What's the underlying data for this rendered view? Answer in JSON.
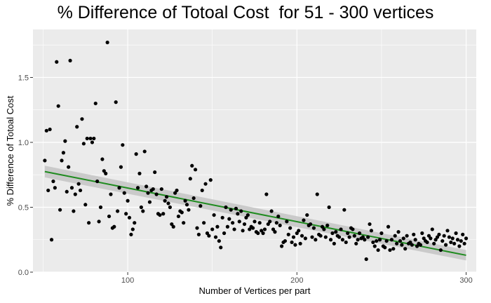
{
  "chart_data": {
    "type": "scatter",
    "title": "% Difference of Totoal Cost  for 51 - 300 vertices",
    "xlabel": "Number of Vertices per part",
    "ylabel": "% Difference of Totoal Cost",
    "xlim": [
      44,
      306
    ],
    "ylim": [
      0.0,
      1.87
    ],
    "x_ticks": [
      100,
      200,
      300
    ],
    "y_ticks": [
      0.0,
      0.5,
      1.0,
      1.5
    ],
    "x_tick_labels": [
      "100",
      "200",
      "300"
    ],
    "y_tick_labels": [
      "0.0",
      "0.5",
      "1.0",
      "1.5"
    ],
    "grid": true,
    "legend": "none",
    "colors": {
      "panel": "#ebebeb",
      "grid": "#ffffff",
      "points": "#000000",
      "trend_line": "#1f8b1f",
      "confidence_band": "#c6c6c6"
    },
    "trend": {
      "type": "linear",
      "x": [
        51,
        300
      ],
      "y": [
        0.775,
        0.13
      ],
      "band_half_width": [
        0.045,
        0.04
      ]
    },
    "points": [
      [
        51,
        0.86
      ],
      [
        52,
        1.09
      ],
      [
        53,
        0.63
      ],
      [
        54,
        1.1
      ],
      [
        55,
        0.25
      ],
      [
        56,
        0.7
      ],
      [
        57,
        0.65
      ],
      [
        58,
        1.62
      ],
      [
        59,
        1.28
      ],
      [
        60,
        0.48
      ],
      [
        61,
        0.86
      ],
      [
        62,
        0.92
      ],
      [
        63,
        1.01
      ],
      [
        64,
        0.62
      ],
      [
        65,
        0.81
      ],
      [
        66,
        1.63
      ],
      [
        67,
        0.65
      ],
      [
        68,
        0.47
      ],
      [
        69,
        0.6
      ],
      [
        70,
        1.12
      ],
      [
        71,
        0.68
      ],
      [
        72,
        0.63
      ],
      [
        73,
        1.18
      ],
      [
        74,
        0.99
      ],
      [
        75,
        0.52
      ],
      [
        76,
        1.03
      ],
      [
        77,
        0.38
      ],
      [
        78,
        1.03
      ],
      [
        79,
        1.0
      ],
      [
        80,
        1.03
      ],
      [
        81,
        1.3
      ],
      [
        82,
        0.7
      ],
      [
        83,
        0.39
      ],
      [
        84,
        0.5
      ],
      [
        85,
        0.87
      ],
      [
        86,
        0.78
      ],
      [
        87,
        0.76
      ],
      [
        88,
        1.77
      ],
      [
        89,
        0.43
      ],
      [
        90,
        0.6
      ],
      [
        91,
        0.34
      ],
      [
        92,
        0.35
      ],
      [
        93,
        1.31
      ],
      [
        94,
        0.47
      ],
      [
        95,
        0.65
      ],
      [
        96,
        0.81
      ],
      [
        97,
        0.98
      ],
      [
        98,
        0.61
      ],
      [
        99,
        0.45
      ],
      [
        100,
        0.55
      ],
      [
        101,
        0.42
      ],
      [
        102,
        0.29
      ],
      [
        103,
        0.33
      ],
      [
        104,
        0.38
      ],
      [
        105,
        0.91
      ],
      [
        106,
        0.65
      ],
      [
        107,
        0.76
      ],
      [
        108,
        0.5
      ],
      [
        109,
        0.47
      ],
      [
        110,
        0.93
      ],
      [
        111,
        0.66
      ],
      [
        112,
        0.61
      ],
      [
        113,
        0.54
      ],
      [
        114,
        0.63
      ],
      [
        115,
        0.64
      ],
      [
        116,
        0.77
      ],
      [
        117,
        0.6
      ],
      [
        118,
        0.45
      ],
      [
        119,
        0.44
      ],
      [
        120,
        0.64
      ],
      [
        121,
        0.45
      ],
      [
        122,
        0.55
      ],
      [
        123,
        0.58
      ],
      [
        124,
        0.53
      ],
      [
        125,
        0.5
      ],
      [
        126,
        0.37
      ],
      [
        127,
        0.35
      ],
      [
        128,
        0.61
      ],
      [
        129,
        0.63
      ],
      [
        130,
        0.43
      ],
      [
        131,
        0.47
      ],
      [
        132,
        0.46
      ],
      [
        133,
        0.38
      ],
      [
        134,
        0.55
      ],
      [
        135,
        0.52
      ],
      [
        136,
        0.48
      ],
      [
        137,
        0.72
      ],
      [
        138,
        0.82
      ],
      [
        139,
        0.57
      ],
      [
        140,
        0.79
      ],
      [
        141,
        0.34
      ],
      [
        142,
        0.29
      ],
      [
        143,
        0.51
      ],
      [
        144,
        0.63
      ],
      [
        145,
        0.38
      ],
      [
        146,
        0.68
      ],
      [
        147,
        0.3
      ],
      [
        148,
        0.28
      ],
      [
        149,
        0.71
      ],
      [
        150,
        0.33
      ],
      [
        151,
        0.44
      ],
      [
        152,
        0.27
      ],
      [
        153,
        0.35
      ],
      [
        154,
        0.24
      ],
      [
        155,
        0.19
      ],
      [
        156,
        0.42
      ],
      [
        157,
        0.3
      ],
      [
        158,
        0.5
      ],
      [
        159,
        0.35
      ],
      [
        160,
        0.41
      ],
      [
        161,
        0.48
      ],
      [
        162,
        0.38
      ],
      [
        163,
        0.33
      ],
      [
        164,
        0.49
      ],
      [
        165,
        0.45
      ],
      [
        166,
        0.39
      ],
      [
        167,
        0.47
      ],
      [
        168,
        0.32
      ],
      [
        169,
        0.37
      ],
      [
        170,
        0.42
      ],
      [
        171,
        0.44
      ],
      [
        172,
        0.33
      ],
      [
        173,
        0.35
      ],
      [
        174,
        0.34
      ],
      [
        175,
        0.39
      ],
      [
        176,
        0.31
      ],
      [
        177,
        0.3
      ],
      [
        178,
        0.38
      ],
      [
        179,
        0.32
      ],
      [
        180,
        0.3
      ],
      [
        181,
        0.33
      ],
      [
        182,
        0.6
      ],
      [
        183,
        0.37
      ],
      [
        184,
        0.39
      ],
      [
        185,
        0.47
      ],
      [
        186,
        0.33
      ],
      [
        187,
        0.31
      ],
      [
        188,
        0.38
      ],
      [
        189,
        0.43
      ],
      [
        190,
        0.36
      ],
      [
        191,
        0.2
      ],
      [
        192,
        0.23
      ],
      [
        193,
        0.24
      ],
      [
        194,
        0.39
      ],
      [
        195,
        0.29
      ],
      [
        196,
        0.34
      ],
      [
        197,
        0.23
      ],
      [
        198,
        0.27
      ],
      [
        199,
        0.21
      ],
      [
        200,
        0.3
      ],
      [
        201,
        0.32
      ],
      [
        202,
        0.22
      ],
      [
        203,
        0.28
      ],
      [
        204,
        0.4
      ],
      [
        205,
        0.26
      ],
      [
        206,
        0.44
      ],
      [
        207,
        0.36
      ],
      [
        208,
        0.37
      ],
      [
        209,
        0.27
      ],
      [
        210,
        0.34
      ],
      [
        211,
        0.25
      ],
      [
        212,
        0.6
      ],
      [
        213,
        0.29
      ],
      [
        214,
        0.28
      ],
      [
        215,
        0.35
      ],
      [
        216,
        0.33
      ],
      [
        217,
        0.27
      ],
      [
        218,
        0.36
      ],
      [
        219,
        0.5
      ],
      [
        220,
        0.25
      ],
      [
        221,
        0.3
      ],
      [
        222,
        0.22
      ],
      [
        223,
        0.31
      ],
      [
        224,
        0.28
      ],
      [
        225,
        0.27
      ],
      [
        226,
        0.33
      ],
      [
        227,
        0.25
      ],
      [
        228,
        0.48
      ],
      [
        229,
        0.23
      ],
      [
        230,
        0.3
      ],
      [
        231,
        0.27
      ],
      [
        232,
        0.34
      ],
      [
        233,
        0.33
      ],
      [
        234,
        0.28
      ],
      [
        235,
        0.22
      ],
      [
        236,
        0.25
      ],
      [
        237,
        0.3
      ],
      [
        238,
        0.26
      ],
      [
        239,
        0.27
      ],
      [
        240,
        0.25
      ],
      [
        241,
        0.1
      ],
      [
        242,
        0.27
      ],
      [
        243,
        0.37
      ],
      [
        244,
        0.32
      ],
      [
        245,
        0.23
      ],
      [
        246,
        0.2
      ],
      [
        247,
        0.24
      ],
      [
        248,
        0.17
      ],
      [
        249,
        0.25
      ],
      [
        250,
        0.3
      ],
      [
        251,
        0.2
      ],
      [
        252,
        0.19
      ],
      [
        253,
        0.24
      ],
      [
        254,
        0.35
      ],
      [
        255,
        0.17
      ],
      [
        256,
        0.25
      ],
      [
        257,
        0.18
      ],
      [
        258,
        0.28
      ],
      [
        259,
        0.22
      ],
      [
        260,
        0.31
      ],
      [
        261,
        0.24
      ],
      [
        262,
        0.21
      ],
      [
        263,
        0.26
      ],
      [
        264,
        0.18
      ],
      [
        265,
        0.28
      ],
      [
        266,
        0.22
      ],
      [
        267,
        0.23
      ],
      [
        268,
        0.21
      ],
      [
        269,
        0.29
      ],
      [
        270,
        0.25
      ],
      [
        271,
        0.2
      ],
      [
        272,
        0.22
      ],
      [
        273,
        0.21
      ],
      [
        274,
        0.3
      ],
      [
        275,
        0.26
      ],
      [
        276,
        0.24
      ],
      [
        277,
        0.23
      ],
      [
        278,
        0.28
      ],
      [
        279,
        0.26
      ],
      [
        280,
        0.33
      ],
      [
        281,
        0.22
      ],
      [
        282,
        0.25
      ],
      [
        283,
        0.27
      ],
      [
        284,
        0.29
      ],
      [
        285,
        0.17
      ],
      [
        286,
        0.24
      ],
      [
        287,
        0.28
      ],
      [
        288,
        0.21
      ],
      [
        289,
        0.32
      ],
      [
        290,
        0.27
      ],
      [
        291,
        0.23
      ],
      [
        292,
        0.26
      ],
      [
        293,
        0.22
      ],
      [
        294,
        0.3
      ],
      [
        295,
        0.25
      ],
      [
        296,
        0.2
      ],
      [
        297,
        0.24
      ],
      [
        298,
        0.29
      ],
      [
        299,
        0.22
      ],
      [
        300,
        0.26
      ]
    ]
  }
}
